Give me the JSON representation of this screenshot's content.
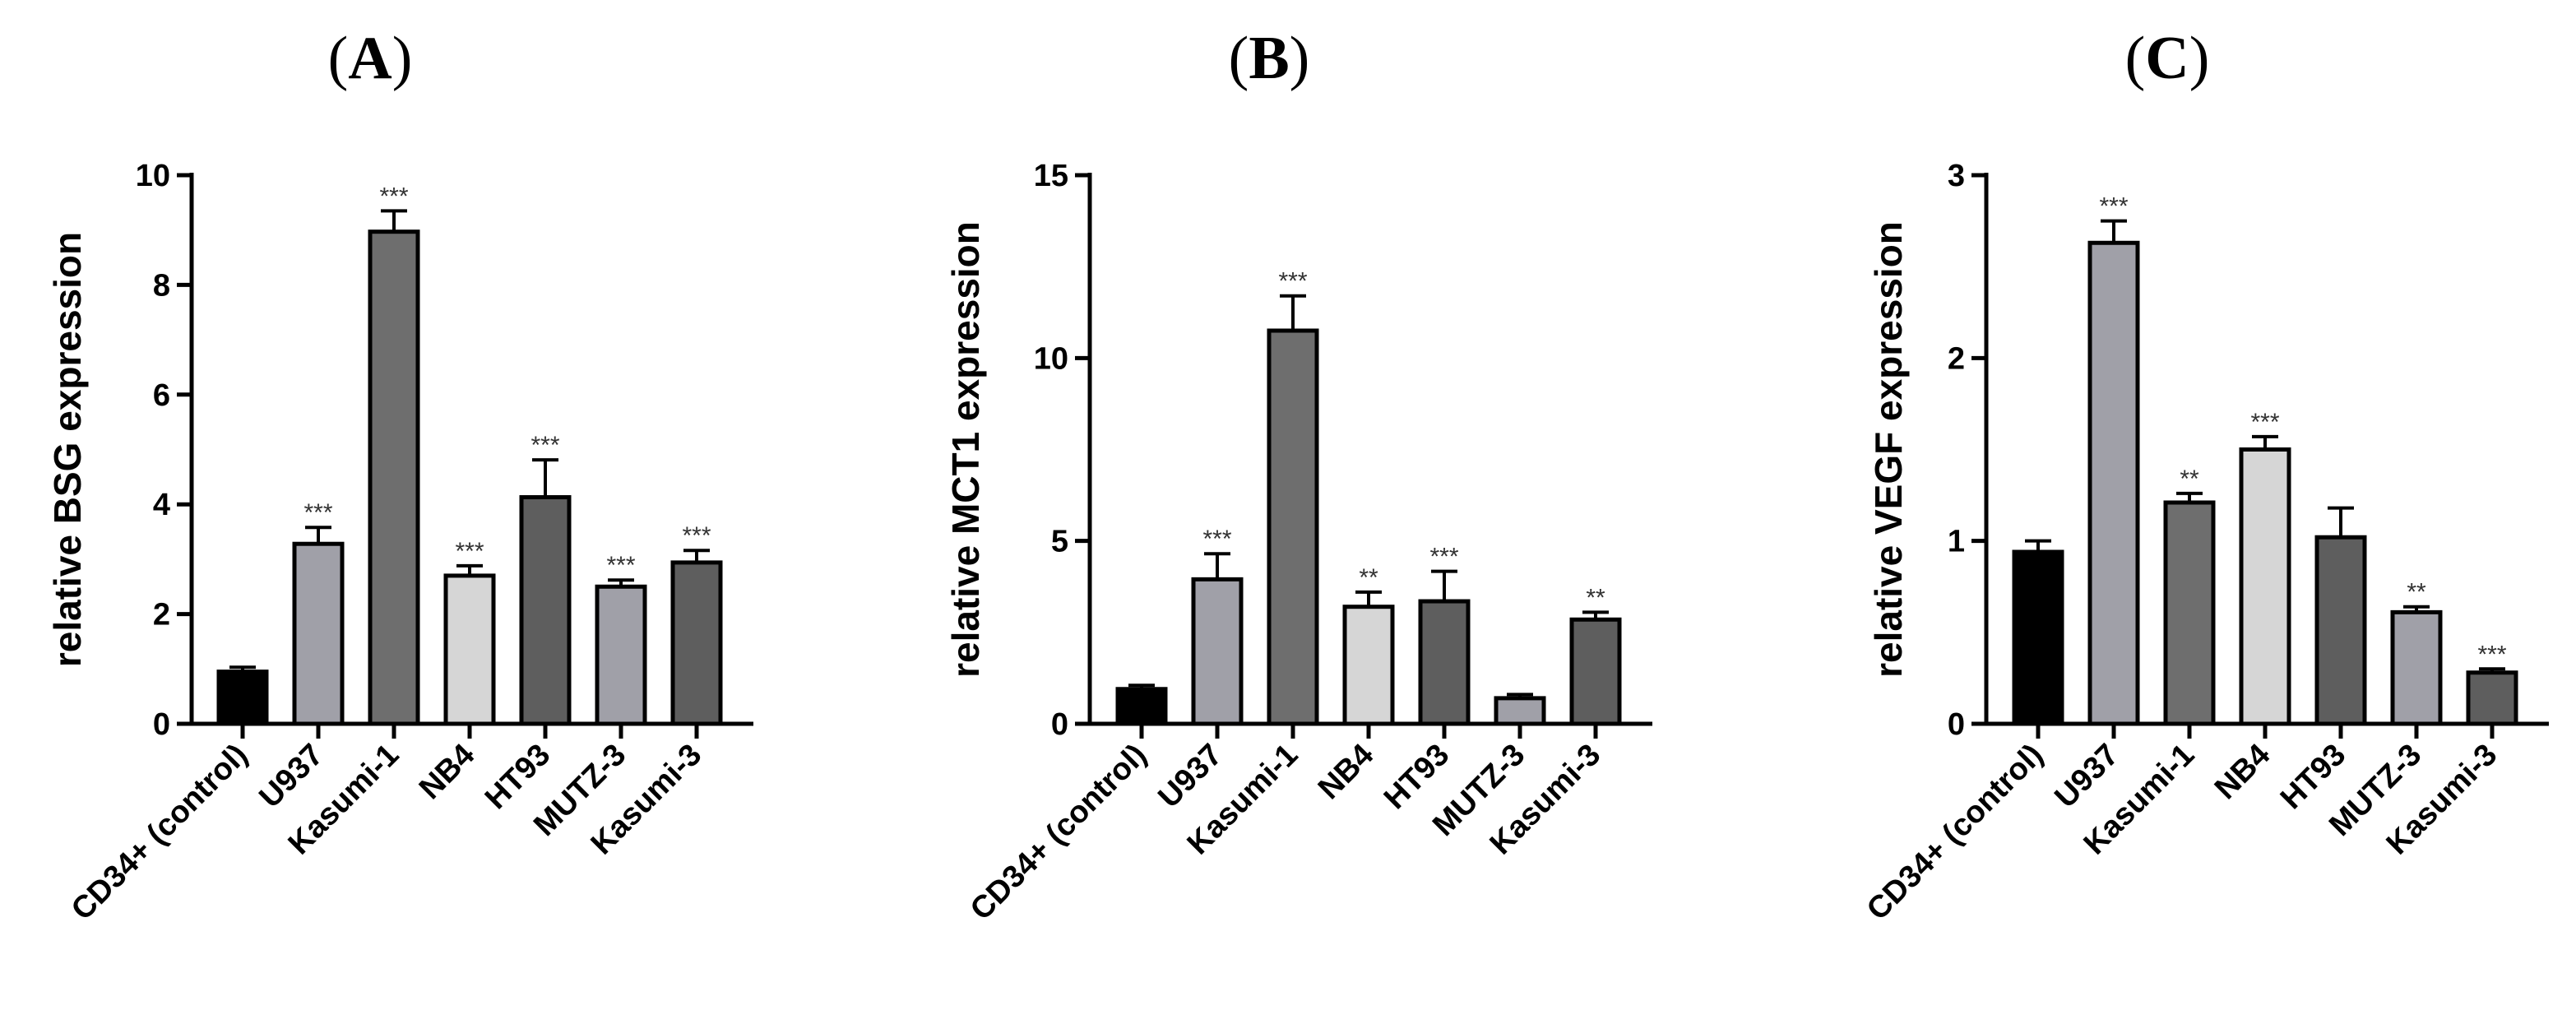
{
  "chart_data": [
    {
      "type": "bar",
      "panel": "A",
      "ylabel": "relative BSG expression",
      "ylim": [
        0,
        10
      ],
      "yticks": [
        "0",
        "2",
        "4",
        "6",
        "8",
        "10"
      ],
      "categories": [
        "CD34+ (control)",
        "U937",
        "Kasumi-1",
        "NB4",
        "HT93",
        "MUTZ-3",
        "Kasumi-3"
      ],
      "values": [
        0.95,
        3.28,
        8.97,
        2.7,
        4.13,
        2.5,
        2.94
      ],
      "errors": [
        0.08,
        0.3,
        0.38,
        0.18,
        0.68,
        0.12,
        0.22
      ],
      "significance": [
        "",
        "***",
        "***",
        "***",
        "***",
        "***",
        "***"
      ],
      "colors": [
        "#000000",
        "#a0a0a8",
        "#6e6e6e",
        "#d6d6d6",
        "#5e5e5e",
        "#a0a0a8",
        "#5e5e5e"
      ]
    },
    {
      "type": "bar",
      "panel": "B",
      "ylabel": "relative MCT1 expression",
      "ylim": [
        0,
        15
      ],
      "yticks": [
        "0",
        "5",
        "10",
        "15"
      ],
      "categories": [
        "CD34+ (control)",
        "U937",
        "Kasumi-1",
        "NB4",
        "HT93",
        "MUTZ-3",
        "Kasumi-3"
      ],
      "values": [
        0.95,
        3.95,
        10.75,
        3.2,
        3.35,
        0.7,
        2.85
      ],
      "errors": [
        0.1,
        0.7,
        0.95,
        0.4,
        0.82,
        0.1,
        0.2
      ],
      "significance": [
        "",
        "***",
        "***",
        "**",
        "***",
        "",
        "**"
      ],
      "colors": [
        "#000000",
        "#a0a0a8",
        "#6e6e6e",
        "#d6d6d6",
        "#5e5e5e",
        "#a0a0a8",
        "#5e5e5e"
      ]
    },
    {
      "type": "bar",
      "panel": "C",
      "ylabel": "relative VEGF expression",
      "ylim": [
        0,
        3
      ],
      "yticks": [
        "0",
        "1",
        "2",
        "3"
      ],
      "categories": [
        "CD34+ (control)",
        "U937",
        "Kasumi-1",
        "NB4",
        "HT93",
        "MUTZ-3",
        "Kasumi-3"
      ],
      "values": [
        0.94,
        2.63,
        1.21,
        1.5,
        1.02,
        0.61,
        0.28
      ],
      "errors": [
        0.06,
        0.12,
        0.05,
        0.07,
        0.16,
        0.03,
        0.02
      ],
      "significance": [
        "",
        "***",
        "**",
        "***",
        "",
        "**",
        "***"
      ],
      "colors": [
        "#000000",
        "#a0a0a8",
        "#6e6e6e",
        "#d6d6d6",
        "#5e5e5e",
        "#a0a0a8",
        "#5e5e5e"
      ]
    }
  ]
}
